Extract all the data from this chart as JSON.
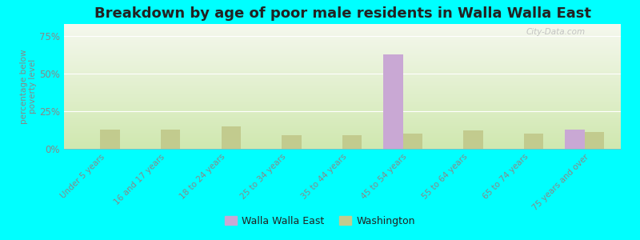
{
  "title": "Breakdown by age of poor male residents in Walla Walla East",
  "categories": [
    "Under 5 years",
    "16 and 17 years",
    "18 to 24 years",
    "25 to 34 years",
    "35 to 44 years",
    "45 to 54 years",
    "55 to 64 years",
    "65 to 74 years",
    "75 years and over"
  ],
  "walla_walla_east": [
    0,
    0,
    0,
    0,
    0,
    63,
    0,
    0,
    13
  ],
  "washington": [
    13,
    13,
    15,
    9,
    9,
    10,
    12,
    10,
    11
  ],
  "walla_walla_color": "#c9a8d4",
  "washington_color": "#c2cb8e",
  "background_color": "#00ffff",
  "ylabel": "percentage below\npoverty level",
  "ylim": [
    0,
    83
  ],
  "yticks": [
    0,
    25,
    50,
    75
  ],
  "ytick_labels": [
    "0%",
    "25%",
    "50%",
    "75%"
  ],
  "bar_width": 0.32,
  "title_fontsize": 13,
  "watermark": "City-Data.com",
  "legend_walla": "Walla Walla East",
  "legend_washington": "Washington"
}
